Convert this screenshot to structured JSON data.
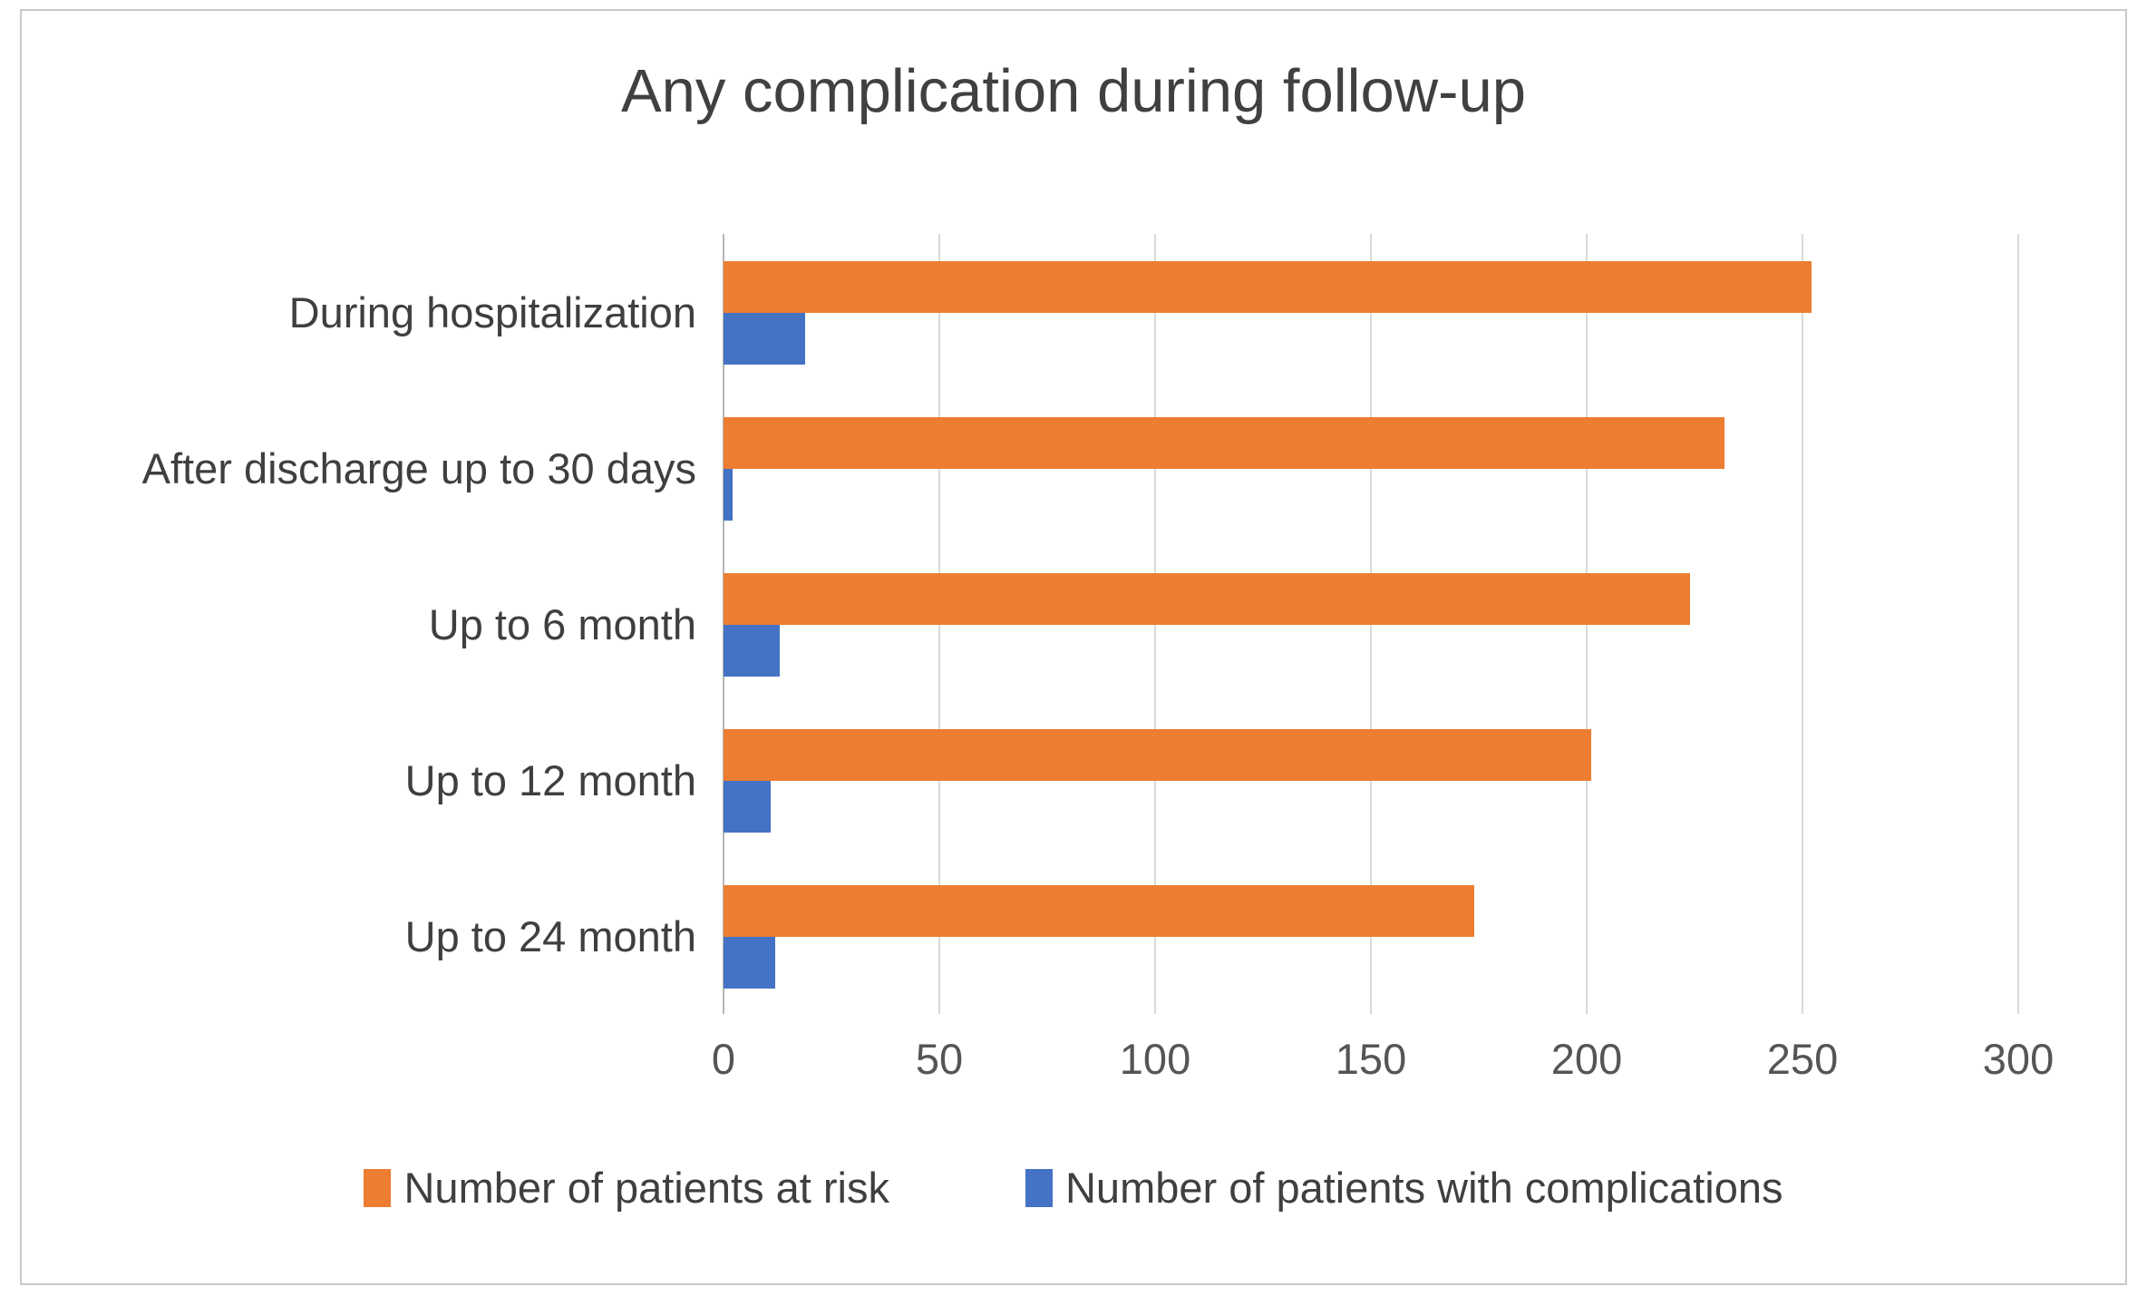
{
  "chart_data": {
    "type": "bar",
    "orientation": "horizontal",
    "title": "Any complication during follow-up",
    "categories": [
      "During hospitalization",
      "After discharge up to 30 days",
      "Up to 6 month",
      "Up to 12 month",
      "Up to 24 month"
    ],
    "series": [
      {
        "name": "Number of patients at risk",
        "color": "#ED7D31",
        "values": [
          252,
          232,
          224,
          201,
          174
        ]
      },
      {
        "name": "Number of patients with complications",
        "color": "#4472C4",
        "values": [
          19,
          2,
          13,
          11,
          12
        ]
      }
    ],
    "x_ticks": [
      0,
      50,
      100,
      150,
      200,
      250,
      300
    ],
    "xlim": [
      0,
      300
    ],
    "xlabel": "",
    "ylabel": "",
    "grid": "vertical-only",
    "legend_position": "bottom",
    "colors": {
      "gridline": "#d9d9d9",
      "axis_line": "#b5b5b5",
      "title_text": "#404040",
      "label_text": "#3f3f3f",
      "tick_text": "#555555",
      "frame_border": "#c9c9c9",
      "background": "#ffffff"
    }
  }
}
